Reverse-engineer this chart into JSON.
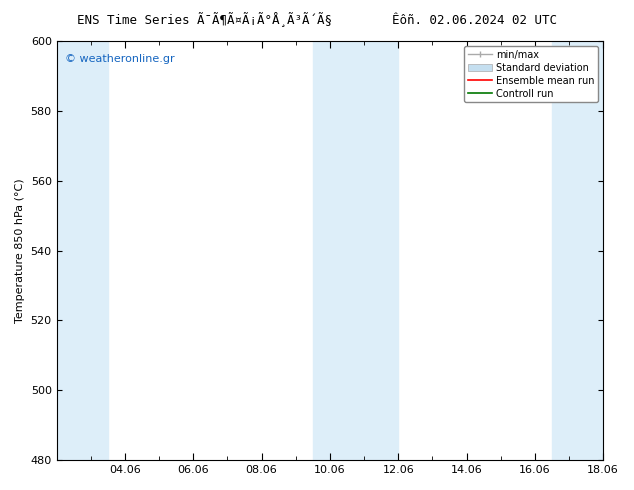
{
  "title_left": "ENS Time Series Ã¯Ã¶Ã¤Ã¡Ã°Å¸Ã³Ã´Ã§",
  "title_right": "Êôñ. 02.06.2024 02 UTC",
  "ylabel": "Temperature 850 hPa (°C)",
  "ylim": [
    480,
    600
  ],
  "yticks": [
    480,
    500,
    520,
    540,
    560,
    580,
    600
  ],
  "x_min": 0,
  "x_max": 16,
  "xtick_positions": [
    2,
    4,
    6,
    8,
    10,
    12,
    14,
    16
  ],
  "xtick_labels": [
    "04.06",
    "06.06",
    "08.06",
    "10.06",
    "12.06",
    "14.06",
    "16.06",
    "18.06"
  ],
  "shaded_bands": [
    {
      "x_start": 0,
      "x_end": 1.5,
      "color": "#ddeef9"
    },
    {
      "x_start": 7.5,
      "x_end": 10,
      "color": "#ddeef9"
    },
    {
      "x_start": 14.5,
      "x_end": 16,
      "color": "#ddeef9"
    }
  ],
  "background_color": "#ffffff",
  "plot_bg_color": "#ffffff",
  "watermark_text": "© weatheronline.gr",
  "watermark_color": "#1565c0",
  "legend_items": [
    {
      "label": "min/max",
      "color": "#aaaaaa",
      "style": "line_with_caps"
    },
    {
      "label": "Standard deviation",
      "color": "#c5dff0",
      "style": "rect"
    },
    {
      "label": "Ensemble mean run",
      "color": "#ff0000",
      "style": "line"
    },
    {
      "label": "Controll run",
      "color": "#007700",
      "style": "line"
    }
  ],
  "font_size_title": 9,
  "font_size_axis": 8,
  "font_size_ticks": 8,
  "font_size_legend": 7,
  "font_size_watermark": 8
}
